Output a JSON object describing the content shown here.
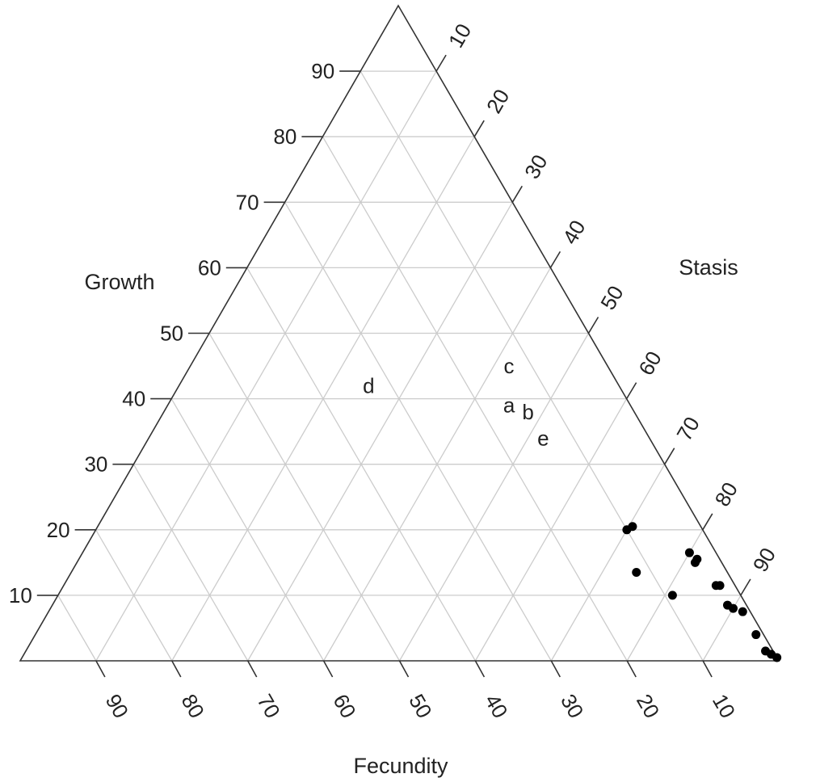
{
  "chart_data": {
    "type": "ternary-scatter",
    "axes": {
      "growth": {
        "label": "Growth",
        "ticks": [
          "10",
          "20",
          "30",
          "40",
          "50",
          "60",
          "70",
          "80",
          "90"
        ]
      },
      "stasis": {
        "label": "Stasis",
        "ticks": [
          "10",
          "20",
          "30",
          "40",
          "50",
          "60",
          "70",
          "80",
          "90"
        ]
      },
      "fecundity": {
        "label": "Fecundity",
        "ticks": [
          "90",
          "80",
          "70",
          "60",
          "50",
          "40",
          "30",
          "20",
          "10"
        ]
      }
    },
    "grid": true,
    "labeled_points": [
      {
        "label": "c",
        "growth": 45,
        "stasis": 42,
        "fecundity": 13
      },
      {
        "label": "d",
        "growth": 42,
        "stasis": 25,
        "fecundity": 33
      },
      {
        "label": "a",
        "growth": 39,
        "stasis": 45,
        "fecundity": 16
      },
      {
        "label": "b",
        "growth": 38,
        "stasis": 48,
        "fecundity": 14
      },
      {
        "label": "e",
        "growth": 34,
        "stasis": 52,
        "fecundity": 14
      }
    ],
    "points": [
      {
        "growth": 20,
        "stasis": 70,
        "fecundity": 10
      },
      {
        "growth": 20.5,
        "stasis": 70.5,
        "fecundity": 9
      },
      {
        "growth": 13.5,
        "stasis": 74.5,
        "fecundity": 12
      },
      {
        "growth": 16.5,
        "stasis": 80,
        "fecundity": 3.5
      },
      {
        "growth": 15,
        "stasis": 81.5,
        "fecundity": 3.5
      },
      {
        "growth": 15.5,
        "stasis": 81.5,
        "fecundity": 3
      },
      {
        "growth": 10,
        "stasis": 81,
        "fecundity": 9
      },
      {
        "growth": 11.5,
        "stasis": 86,
        "fecundity": 2.5
      },
      {
        "growth": 11.5,
        "stasis": 86.5,
        "fecundity": 2
      },
      {
        "growth": 8.5,
        "stasis": 89,
        "fecundity": 2.5
      },
      {
        "growth": 8,
        "stasis": 90,
        "fecundity": 2
      },
      {
        "growth": 7.5,
        "stasis": 91.5,
        "fecundity": 1
      },
      {
        "growth": 4,
        "stasis": 95,
        "fecundity": 1
      },
      {
        "growth": 1.5,
        "stasis": 97.5,
        "fecundity": 1
      },
      {
        "growth": 1,
        "stasis": 98.5,
        "fecundity": 0.5
      },
      {
        "growth": 0.5,
        "stasis": 99.5,
        "fecundity": 0
      }
    ]
  }
}
